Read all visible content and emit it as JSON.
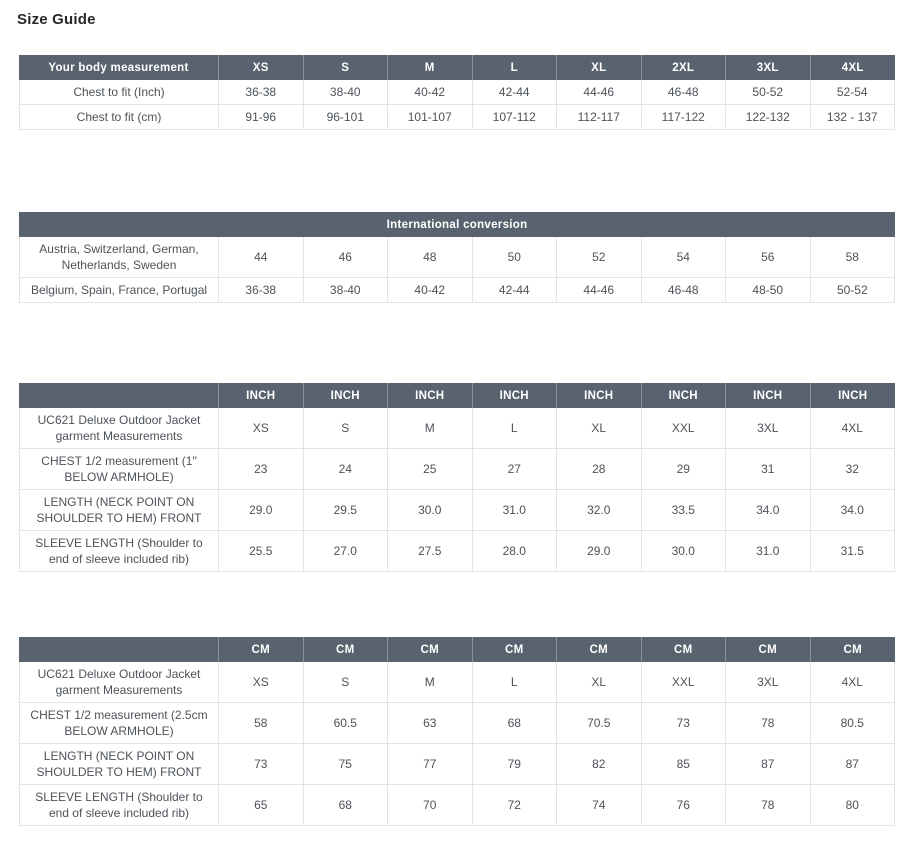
{
  "page": {
    "title": "Size Guide"
  },
  "colors": {
    "header_bg": "#59636f",
    "header_text": "#ffffff",
    "body_text": "#4d5359",
    "border": "#e2e4e6",
    "title_text": "#26282c"
  },
  "tables": {
    "body_measurement": {
      "header": [
        "Your body measurement",
        "XS",
        "S",
        "M",
        "L",
        "XL",
        "2XL",
        "3XL",
        "4XL"
      ],
      "rows": [
        [
          "Chest to fit (Inch)",
          "36-38",
          "38-40",
          "40-42",
          "42-44",
          "44-46",
          "46-48",
          "50-52",
          "52-54"
        ],
        [
          "Chest to fit (cm)",
          "91-96",
          "96-101",
          "101-107",
          "107-112",
          "112-117",
          "117-122",
          "122-132",
          "132 - 137"
        ]
      ]
    },
    "international_conversion": {
      "header": "International conversion",
      "rows": [
        [
          "Austria, Switzerland, German, Netherlands, Sweden",
          "44",
          "46",
          "48",
          "50",
          "52",
          "54",
          "56",
          "58"
        ],
        [
          "Belgium, Spain, France, Portugal",
          "36-38",
          "38-40",
          "40-42",
          "42-44",
          "44-46",
          "46-48",
          "48-50",
          "50-52"
        ]
      ]
    },
    "inch_measurements": {
      "header": [
        "",
        "INCH",
        "INCH",
        "INCH",
        "INCH",
        "INCH",
        "INCH",
        "INCH",
        "INCH"
      ],
      "rows": [
        [
          "UC621 Deluxe Outdoor Jacket garment Measurements",
          "XS",
          "S",
          "M",
          "L",
          "XL",
          "XXL",
          "3XL",
          "4XL"
        ],
        [
          "CHEST 1/2 measurement (1\" BELOW ARMHOLE)",
          "23",
          "24",
          "25",
          "27",
          "28",
          "29",
          "31",
          "32"
        ],
        [
          "LENGTH (NECK POINT ON SHOULDER TO HEM) FRONT",
          "29.0",
          "29.5",
          "30.0",
          "31.0",
          "32.0",
          "33.5",
          "34.0",
          "34.0"
        ],
        [
          "SLEEVE LENGTH (Shoulder to end of sleeve included rib)",
          "25.5",
          "27.0",
          "27.5",
          "28.0",
          "29.0",
          "30.0",
          "31.0",
          "31.5"
        ]
      ]
    },
    "cm_measurements": {
      "header": [
        "",
        "CM",
        "CM",
        "CM",
        "CM",
        "CM",
        "CM",
        "CM",
        "CM"
      ],
      "rows": [
        [
          "UC621 Deluxe Outdoor Jacket garment Measurements",
          "XS",
          "S",
          "M",
          "L",
          "XL",
          "XXL",
          "3XL",
          "4XL"
        ],
        [
          "CHEST 1/2 measurement (2.5cm BELOW ARMHOLE)",
          "58",
          "60.5",
          "63",
          "68",
          "70.5",
          "73",
          "78",
          "80.5"
        ],
        [
          "LENGTH (NECK POINT ON SHOULDER TO HEM) FRONT",
          "73",
          "75",
          "77",
          "79",
          "82",
          "85",
          "87",
          "87"
        ],
        [
          "SLEEVE LENGTH (Shoulder to end of sleeve included rib)",
          "65",
          "68",
          "70",
          "72",
          "74",
          "76",
          "78",
          "80"
        ]
      ]
    }
  }
}
